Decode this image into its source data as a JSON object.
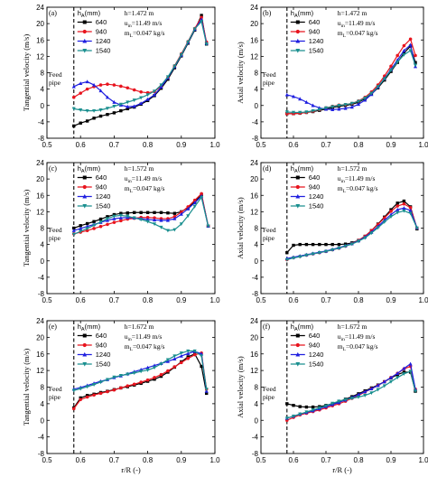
{
  "legend_header": "h_A(mm)",
  "common": {
    "u_in": "u_in=11.49 m/s",
    "m_L": "m_L=0.047 kg/s",
    "feed_line_1": "Feed",
    "feed_line_2": "pipe",
    "feed_x": 0.58
  },
  "series_style": [
    {
      "name": "640",
      "color": "#000000",
      "marker": "square"
    },
    {
      "name": "940",
      "color": "#e8141e",
      "marker": "circle"
    },
    {
      "name": "1240",
      "color": "#1f1fe0",
      "marker": "triangle-up"
    },
    {
      "name": "1540",
      "color": "#1a8f8f",
      "marker": "triangle-down"
    }
  ],
  "chart_data": [
    {
      "panel": "(a)",
      "type": "line",
      "h": "h=1.472 m",
      "ylabel": "Tangential velocity (m/s)",
      "xlabel": "",
      "xlim": [
        0.5,
        1.0
      ],
      "ylim": [
        -8,
        24
      ],
      "xticks": [
        0.5,
        0.6,
        0.7,
        0.8,
        0.9,
        1.0
      ],
      "yticks": [
        -8,
        -4,
        0,
        4,
        8,
        12,
        16,
        20,
        24
      ],
      "x": [
        0.58,
        0.6,
        0.62,
        0.64,
        0.66,
        0.68,
        0.7,
        0.72,
        0.74,
        0.76,
        0.78,
        0.8,
        0.82,
        0.84,
        0.86,
        0.88,
        0.9,
        0.92,
        0.94,
        0.96,
        0.975
      ],
      "series": [
        {
          "name": "640",
          "values": [
            -5.0,
            -4.3,
            -3.8,
            -3.1,
            -2.6,
            -2.2,
            -1.8,
            -1.3,
            -0.8,
            -0.4,
            0.3,
            1.2,
            2.4,
            4.2,
            6.4,
            9.2,
            12.1,
            15.2,
            18.4,
            22.0,
            15.0
          ]
        },
        {
          "name": "940",
          "values": [
            2.0,
            3.0,
            4.0,
            4.6,
            5.0,
            5.2,
            5.0,
            4.7,
            4.3,
            3.8,
            3.3,
            3.1,
            3.4,
            4.7,
            6.8,
            9.7,
            12.6,
            15.6,
            18.8,
            21.5,
            15.5
          ]
        },
        {
          "name": "1240",
          "values": [
            4.6,
            5.4,
            5.8,
            5.0,
            3.6,
            2.0,
            0.8,
            0.1,
            -0.3,
            -0.2,
            0.5,
            1.5,
            2.6,
            4.5,
            6.8,
            9.5,
            12.3,
            15.4,
            18.6,
            21.0,
            15.2
          ]
        },
        {
          "name": "1540",
          "values": [
            -0.8,
            -1.1,
            -1.3,
            -1.3,
            -1.1,
            -0.7,
            -0.2,
            0.3,
            0.8,
            1.3,
            1.9,
            2.6,
            3.5,
            5.0,
            7.0,
            9.6,
            12.4,
            15.5,
            18.7,
            20.5,
            15.0
          ]
        }
      ]
    },
    {
      "panel": "(b)",
      "type": "line",
      "h": "h=1.472 m",
      "ylabel": "Axial velocity (m/s)",
      "xlabel": "",
      "xlim": [
        0.5,
        1.0
      ],
      "ylim": [
        -8,
        24
      ],
      "xticks": [
        0.5,
        0.6,
        0.7,
        0.8,
        0.9,
        1.0
      ],
      "yticks": [
        -8,
        -4,
        0,
        4,
        8,
        12,
        16,
        20,
        24
      ],
      "x": [
        0.58,
        0.6,
        0.62,
        0.64,
        0.66,
        0.68,
        0.7,
        0.72,
        0.74,
        0.76,
        0.78,
        0.8,
        0.82,
        0.84,
        0.86,
        0.88,
        0.9,
        0.92,
        0.94,
        0.96,
        0.975
      ],
      "series": [
        {
          "name": "640",
          "values": [
            -2.0,
            -2.0,
            -1.9,
            -1.7,
            -1.5,
            -1.2,
            -0.9,
            -0.5,
            -0.2,
            0.0,
            0.3,
            0.8,
            1.6,
            2.8,
            4.3,
            6.2,
            8.3,
            10.5,
            12.8,
            14.5,
            10.5
          ]
        },
        {
          "name": "940",
          "values": [
            -2.0,
            -2.0,
            -1.9,
            -1.7,
            -1.4,
            -1.0,
            -0.6,
            -0.2,
            0.1,
            0.2,
            0.5,
            1.1,
            2.0,
            3.3,
            5.0,
            7.2,
            9.6,
            12.2,
            14.6,
            16.2,
            12.2
          ]
        },
        {
          "name": "1240",
          "values": [
            2.6,
            2.2,
            1.6,
            0.8,
            0.0,
            -0.6,
            -0.9,
            -1.0,
            -0.9,
            -0.7,
            -0.4,
            0.3,
            1.3,
            2.7,
            4.5,
            6.6,
            8.8,
            11.1,
            13.4,
            14.8,
            9.5
          ]
        },
        {
          "name": "1540",
          "values": [
            -1.6,
            -1.7,
            -1.7,
            -1.6,
            -1.3,
            -1.0,
            -0.6,
            -0.3,
            0.0,
            0.2,
            0.5,
            1.0,
            1.8,
            3.0,
            4.6,
            6.5,
            8.6,
            10.6,
            12.4,
            13.4,
            9.8
          ]
        }
      ]
    },
    {
      "panel": "(c)",
      "type": "line",
      "h": "h=1.572 m",
      "ylabel": "Tangential velocity (m/s)",
      "xlabel": "",
      "xlim": [
        0.5,
        1.0
      ],
      "ylim": [
        -8,
        24
      ],
      "xticks": [
        0.5,
        0.6,
        0.7,
        0.8,
        0.9,
        1.0
      ],
      "yticks": [
        -8,
        -4,
        0,
        4,
        8,
        12,
        16,
        20,
        24
      ],
      "x": [
        0.58,
        0.6,
        0.62,
        0.64,
        0.66,
        0.68,
        0.7,
        0.72,
        0.74,
        0.76,
        0.78,
        0.8,
        0.82,
        0.84,
        0.86,
        0.88,
        0.9,
        0.92,
        0.94,
        0.96,
        0.98
      ],
      "series": [
        {
          "name": "640",
          "values": [
            8.0,
            8.6,
            9.1,
            9.6,
            10.2,
            10.8,
            11.3,
            11.6,
            11.7,
            11.8,
            11.8,
            11.8,
            11.8,
            11.8,
            11.7,
            11.6,
            12.0,
            13.0,
            14.4,
            16.2,
            8.5
          ]
        },
        {
          "name": "940",
          "values": [
            6.6,
            7.0,
            7.4,
            7.9,
            8.4,
            8.9,
            9.4,
            9.8,
            10.2,
            10.4,
            10.6,
            10.6,
            10.5,
            10.3,
            10.3,
            10.8,
            11.9,
            13.2,
            14.8,
            16.4,
            8.5
          ]
        },
        {
          "name": "1240",
          "values": [
            7.4,
            7.9,
            8.4,
            8.9,
            9.4,
            9.9,
            10.3,
            10.5,
            10.6,
            10.5,
            10.3,
            10.1,
            10.0,
            9.9,
            9.9,
            10.3,
            11.4,
            12.7,
            14.2,
            15.8,
            8.5
          ]
        },
        {
          "name": "1540",
          "values": [
            6.5,
            7.2,
            7.9,
            8.7,
            9.5,
            10.3,
            10.9,
            11.1,
            10.9,
            10.5,
            10.1,
            9.6,
            9.0,
            8.2,
            7.4,
            7.6,
            9.0,
            11.0,
            13.3,
            15.5,
            8.5
          ]
        }
      ]
    },
    {
      "panel": "(d)",
      "type": "line",
      "h": "h=1.572 m",
      "ylabel": "Axial velocity (m/s)",
      "xlabel": "",
      "xlim": [
        0.5,
        1.0
      ],
      "ylim": [
        -8,
        24
      ],
      "xticks": [
        0.5,
        0.6,
        0.7,
        0.8,
        0.9,
        1.0
      ],
      "yticks": [
        -8,
        -4,
        0,
        4,
        8,
        12,
        16,
        20,
        24
      ],
      "x": [
        0.58,
        0.6,
        0.62,
        0.64,
        0.66,
        0.68,
        0.7,
        0.72,
        0.74,
        0.76,
        0.78,
        0.8,
        0.82,
        0.84,
        0.86,
        0.88,
        0.9,
        0.92,
        0.94,
        0.96,
        0.98
      ],
      "series": [
        {
          "name": "640",
          "values": [
            2.0,
            3.8,
            4.0,
            4.0,
            4.0,
            4.0,
            4.0,
            4.0,
            4.0,
            4.1,
            4.4,
            5.0,
            6.0,
            7.4,
            9.0,
            10.7,
            12.5,
            14.1,
            14.6,
            13.2,
            7.8
          ]
        },
        {
          "name": "940",
          "values": [
            0.3,
            0.8,
            1.1,
            1.4,
            1.7,
            2.0,
            2.3,
            2.7,
            3.1,
            3.6,
            4.2,
            5.0,
            6.0,
            7.4,
            8.9,
            10.5,
            12.1,
            13.4,
            13.9,
            13.0,
            8.0
          ]
        },
        {
          "name": "1240",
          "values": [
            0.6,
            0.9,
            1.2,
            1.5,
            1.8,
            2.1,
            2.4,
            2.8,
            3.2,
            3.7,
            4.2,
            4.9,
            5.8,
            7.0,
            8.4,
            9.9,
            11.3,
            12.5,
            12.9,
            12.3,
            8.1
          ]
        },
        {
          "name": "1540",
          "values": [
            0.3,
            0.7,
            1.0,
            1.4,
            1.7,
            2.0,
            2.3,
            2.7,
            3.1,
            3.6,
            4.1,
            4.8,
            5.6,
            6.8,
            8.1,
            9.5,
            10.8,
            11.8,
            12.2,
            11.6,
            8.0
          ]
        }
      ]
    },
    {
      "panel": "(e)",
      "type": "line",
      "h": "h=1.672 m",
      "ylabel": "Tangential velocity (m/s)",
      "xlabel": "r/R (-)",
      "xlim": [
        0.5,
        1.0
      ],
      "ylim": [
        -8,
        24
      ],
      "xticks": [
        0.5,
        0.6,
        0.7,
        0.8,
        0.9,
        1.0
      ],
      "yticks": [
        -8,
        -4,
        0,
        4,
        8,
        12,
        16,
        20,
        24
      ],
      "x": [
        0.58,
        0.6,
        0.62,
        0.64,
        0.66,
        0.68,
        0.7,
        0.72,
        0.74,
        0.76,
        0.78,
        0.8,
        0.82,
        0.84,
        0.86,
        0.88,
        0.9,
        0.92,
        0.94,
        0.96,
        0.975
      ],
      "series": [
        {
          "name": "640",
          "values": [
            3.0,
            5.4,
            6.0,
            6.3,
            6.7,
            7.0,
            7.4,
            7.8,
            8.1,
            8.5,
            8.9,
            9.4,
            9.9,
            10.6,
            11.6,
            12.8,
            14.1,
            15.3,
            16.0,
            13.0,
            6.5
          ]
        },
        {
          "name": "940",
          "values": [
            2.8,
            5.0,
            5.6,
            6.1,
            6.5,
            6.9,
            7.3,
            7.8,
            8.3,
            8.7,
            9.2,
            9.7,
            10.3,
            11.0,
            11.9,
            12.9,
            13.9,
            14.9,
            15.8,
            16.2,
            7.5
          ]
        },
        {
          "name": "1240",
          "values": [
            7.5,
            7.9,
            8.4,
            8.9,
            9.4,
            9.8,
            10.3,
            10.7,
            11.2,
            11.7,
            12.2,
            12.7,
            13.2,
            13.7,
            14.2,
            14.8,
            15.5,
            16.1,
            16.6,
            16.0,
            7.0
          ]
        },
        {
          "name": "1540",
          "values": [
            7.2,
            7.6,
            8.1,
            8.6,
            9.2,
            9.8,
            10.4,
            10.8,
            11.1,
            11.4,
            11.8,
            12.1,
            12.7,
            13.6,
            14.6,
            15.5,
            16.2,
            16.7,
            16.7,
            15.5,
            7.5
          ]
        }
      ]
    },
    {
      "panel": "(f)",
      "type": "line",
      "h": "h=1.672 m",
      "ylabel": "Axial velocity (m/s)",
      "xlabel": "r/R (-)",
      "xlim": [
        0.5,
        1.0
      ],
      "ylim": [
        -8,
        24
      ],
      "xticks": [
        0.5,
        0.6,
        0.7,
        0.8,
        0.9,
        1.0
      ],
      "yticks": [
        -8,
        -4,
        0,
        4,
        8,
        12,
        16,
        20,
        24
      ],
      "x": [
        0.58,
        0.6,
        0.62,
        0.64,
        0.66,
        0.68,
        0.7,
        0.72,
        0.74,
        0.76,
        0.78,
        0.8,
        0.82,
        0.84,
        0.86,
        0.88,
        0.9,
        0.92,
        0.94,
        0.96,
        0.975
      ],
      "series": [
        {
          "name": "640",
          "values": [
            4.0,
            3.6,
            3.3,
            3.2,
            3.2,
            3.3,
            3.6,
            4.0,
            4.5,
            5.1,
            5.7,
            6.4,
            7.1,
            7.8,
            8.5,
            9.3,
            10.2,
            11.0,
            11.6,
            11.6,
            7.0
          ]
        },
        {
          "name": "940",
          "values": [
            0.0,
            0.7,
            1.3,
            1.7,
            2.1,
            2.5,
            3.0,
            3.5,
            4.0,
            4.6,
            5.3,
            6.0,
            6.8,
            7.6,
            8.4,
            9.3,
            10.3,
            11.3,
            12.4,
            13.0,
            7.5
          ]
        },
        {
          "name": "1240",
          "values": [
            0.5,
            1.0,
            1.5,
            1.9,
            2.3,
            2.8,
            3.3,
            3.8,
            4.3,
            4.9,
            5.5,
            6.2,
            6.9,
            7.6,
            8.4,
            9.3,
            10.3,
            11.3,
            12.5,
            13.6,
            7.5
          ]
        },
        {
          "name": "1540",
          "values": [
            0.5,
            1.0,
            1.5,
            2.0,
            2.5,
            3.0,
            3.5,
            4.1,
            4.6,
            5.0,
            5.3,
            5.6,
            6.0,
            6.6,
            7.4,
            8.3,
            9.3,
            10.3,
            11.2,
            11.8,
            7.0
          ]
        }
      ]
    }
  ]
}
